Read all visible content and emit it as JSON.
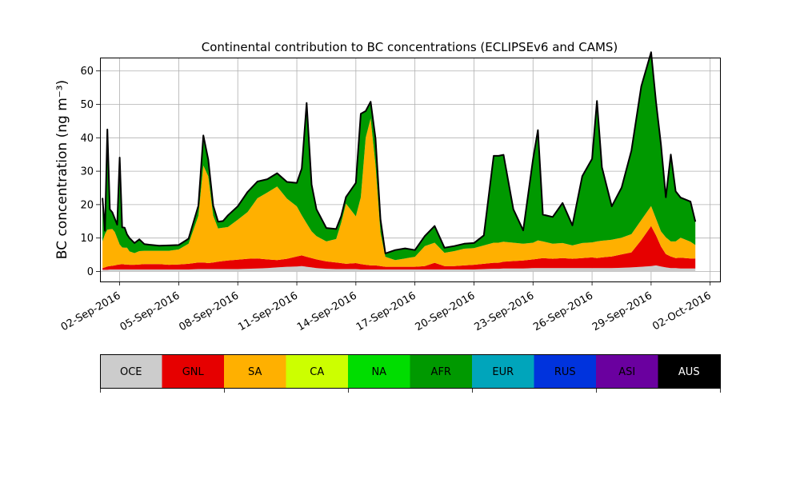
{
  "chart_data": {
    "type": "area",
    "stacked": true,
    "title": "Continental contribution to BC concentrations (ECLIPSEv6 and CAMS)",
    "ylabel": "BC concentration (ng m⁻³)",
    "xlabel": "",
    "ylim": [
      -3,
      64
    ],
    "xlim": [
      "2016-09-01T00:00",
      "2016-10-02T12:00"
    ],
    "x_tick_dates": [
      "2016-09-02",
      "2016-09-05",
      "2016-09-08",
      "2016-09-11",
      "2016-09-14",
      "2016-09-17",
      "2016-09-20",
      "2016-09-23",
      "2016-09-26",
      "2016-09-29",
      "2016-10-02"
    ],
    "x_tick_labels": [
      "02-Sep-2016",
      "05-Sep-2016",
      "08-Sep-2016",
      "11-Sep-2016",
      "14-Sep-2016",
      "17-Sep-2016",
      "20-Sep-2016",
      "23-Sep-2016",
      "26-Sep-2016",
      "29-Sep-2016",
      "02-Oct-2016"
    ],
    "y_ticks": [
      0,
      10,
      20,
      30,
      40,
      50,
      60
    ],
    "grid": true,
    "outline_color": "#000000",
    "x": [
      "2016-09-01T03:00",
      "2016-09-01T06:00",
      "2016-09-01T09:00",
      "2016-09-01T12:00",
      "2016-09-01T15:00",
      "2016-09-01T18:00",
      "2016-09-01T21:00",
      "2016-09-02T00:00",
      "2016-09-02T03:00",
      "2016-09-02T06:00",
      "2016-09-02T09:00",
      "2016-09-02T12:00",
      "2016-09-02T18:00",
      "2016-09-03T00:00",
      "2016-09-03T06:00",
      "2016-09-03T12:00",
      "2016-09-04T00:00",
      "2016-09-04T12:00",
      "2016-09-05T00:00",
      "2016-09-05T12:00",
      "2016-09-06T00:00",
      "2016-09-06T06:00",
      "2016-09-06T12:00",
      "2016-09-06T18:00",
      "2016-09-07T00:00",
      "2016-09-07T06:00",
      "2016-09-07T12:00",
      "2016-09-08T00:00",
      "2016-09-08T12:00",
      "2016-09-09T00:00",
      "2016-09-09T12:00",
      "2016-09-10T00:00",
      "2016-09-10T12:00",
      "2016-09-11T00:00",
      "2016-09-11T06:00",
      "2016-09-11T12:00",
      "2016-09-11T18:00",
      "2016-09-12T00:00",
      "2016-09-12T12:00",
      "2016-09-13T00:00",
      "2016-09-13T06:00",
      "2016-09-13T12:00",
      "2016-09-14T00:00",
      "2016-09-14T06:00",
      "2016-09-14T12:00",
      "2016-09-14T18:00",
      "2016-09-15T00:00",
      "2016-09-15T06:00",
      "2016-09-15T12:00",
      "2016-09-16T00:00",
      "2016-09-16T12:00",
      "2016-09-17T00:00",
      "2016-09-17T12:00",
      "2016-09-18T00:00",
      "2016-09-18T12:00",
      "2016-09-19T00:00",
      "2016-09-19T12:00",
      "2016-09-20T00:00",
      "2016-09-20T12:00",
      "2016-09-21T00:00",
      "2016-09-21T06:00",
      "2016-09-21T12:00",
      "2016-09-22T00:00",
      "2016-09-22T12:00",
      "2016-09-23T00:00",
      "2016-09-23T06:00",
      "2016-09-23T12:00",
      "2016-09-24T00:00",
      "2016-09-24T12:00",
      "2016-09-25T00:00",
      "2016-09-25T12:00",
      "2016-09-26T00:00",
      "2016-09-26T06:00",
      "2016-09-26T12:00",
      "2016-09-27T00:00",
      "2016-09-27T12:00",
      "2016-09-28T00:00",
      "2016-09-28T12:00",
      "2016-09-29T00:00",
      "2016-09-29T06:00",
      "2016-09-29T12:00",
      "2016-09-29T18:00",
      "2016-09-30T00:00",
      "2016-09-30T06:00",
      "2016-09-30T12:00",
      "2016-10-01T00:00",
      "2016-10-01T06:00"
    ],
    "series": [
      {
        "name": "OCE",
        "color": "#cccccc",
        "values": [
          0.5,
          0.5,
          0.5,
          0.6,
          0.6,
          0.6,
          0.6,
          0.6,
          0.6,
          0.6,
          0.6,
          0.6,
          0.6,
          0.6,
          0.6,
          0.6,
          0.6,
          0.6,
          0.6,
          0.6,
          0.7,
          0.7,
          0.7,
          0.7,
          0.7,
          0.7,
          0.7,
          0.7,
          0.8,
          0.9,
          1.0,
          1.2,
          1.4,
          1.5,
          1.6,
          1.4,
          1.2,
          1.0,
          0.8,
          0.7,
          0.7,
          0.7,
          0.7,
          0.6,
          0.6,
          0.6,
          0.6,
          0.6,
          0.6,
          0.6,
          0.6,
          0.6,
          0.6,
          0.6,
          0.6,
          0.6,
          0.6,
          0.6,
          0.7,
          0.8,
          0.8,
          0.9,
          0.9,
          0.9,
          1.0,
          1.0,
          1.0,
          1.0,
          1.0,
          1.0,
          1.0,
          1.0,
          1.0,
          1.0,
          1.0,
          1.1,
          1.2,
          1.4,
          1.6,
          1.8,
          1.5,
          1.2,
          1.0,
          1.0,
          0.9,
          0.9,
          0.9
        ]
      },
      {
        "name": "GNL",
        "color": "#e60000",
        "values": [
          0.5,
          0.7,
          1.0,
          1.0,
          1.1,
          1.2,
          1.4,
          1.5,
          1.6,
          1.5,
          1.5,
          1.4,
          1.4,
          1.5,
          1.6,
          1.6,
          1.6,
          1.4,
          1.5,
          1.7,
          2.0,
          2.0,
          1.8,
          2.0,
          2.2,
          2.4,
          2.6,
          2.8,
          3.0,
          3.0,
          2.6,
          2.2,
          2.4,
          3.0,
          3.2,
          3.0,
          2.8,
          2.6,
          2.2,
          2.0,
          1.8,
          1.6,
          1.8,
          1.6,
          1.4,
          1.2,
          1.2,
          1.0,
          0.8,
          0.8,
          0.8,
          0.8,
          1.0,
          2.0,
          1.0,
          1.0,
          1.2,
          1.4,
          1.6,
          1.8,
          1.8,
          2.0,
          2.2,
          2.4,
          2.6,
          2.8,
          3.0,
          2.8,
          3.0,
          2.8,
          3.0,
          3.2,
          3.0,
          3.2,
          3.5,
          4.0,
          4.5,
          8.0,
          12.0,
          9.0,
          6.0,
          4.0,
          3.5,
          3.0,
          3.2,
          3.0,
          3.0
        ]
      },
      {
        "name": "SA",
        "color": "#ffb000",
        "values": [
          8.0,
          10.0,
          11.0,
          11.0,
          11.0,
          10.0,
          8.0,
          6.0,
          5.0,
          5.0,
          5.0,
          4.0,
          3.5,
          4.0,
          4.0,
          4.0,
          4.0,
          4.2,
          4.5,
          6.0,
          14.0,
          29.0,
          26.0,
          14.0,
          10.0,
          10.0,
          10.0,
          12.0,
          14.0,
          18.0,
          20.0,
          22.0,
          18.0,
          15.0,
          12.0,
          10.0,
          8.0,
          7.0,
          6.0,
          7.0,
          12.0,
          18.0,
          14.0,
          20.0,
          38.0,
          44.0,
          30.0,
          10.0,
          3.0,
          2.0,
          2.5,
          3.0,
          6.0,
          6.0,
          4.0,
          4.5,
          5.0,
          5.0,
          5.5,
          6.0,
          6.0,
          6.0,
          5.5,
          5.0,
          5.0,
          5.5,
          5.0,
          4.5,
          4.5,
          4.0,
          4.5,
          4.5,
          5.0,
          5.0,
          5.0,
          5.0,
          5.5,
          6.0,
          6.0,
          5.0,
          4.5,
          5.0,
          4.5,
          5.0,
          6.0,
          5.0,
          4.0
        ]
      },
      {
        "name": "CA",
        "color": "#ccff00",
        "values": [
          0,
          0,
          0,
          0,
          0,
          0,
          0,
          0,
          0,
          0,
          0,
          0,
          0,
          0,
          0,
          0,
          0,
          0,
          0,
          0,
          0,
          0,
          0,
          0,
          0,
          0,
          0,
          0,
          0,
          0,
          0,
          0,
          0,
          0,
          0,
          0,
          0,
          0,
          0,
          0,
          0,
          0,
          0,
          0,
          0,
          0,
          0,
          0,
          0,
          0,
          0,
          0,
          0,
          0,
          0,
          0,
          0,
          0,
          0,
          0,
          0,
          0,
          0,
          0,
          0,
          0,
          0,
          0,
          0,
          0,
          0,
          0,
          0,
          0,
          0,
          0,
          0,
          0,
          0,
          0,
          0,
          0,
          0,
          0,
          0,
          0,
          0
        ]
      },
      {
        "name": "NA",
        "color": "#00dd00",
        "values": [
          0,
          0,
          0,
          0,
          0,
          0,
          0,
          0,
          0,
          0,
          0,
          0,
          0,
          0,
          0,
          0,
          0,
          0,
          0,
          0,
          0,
          0,
          0,
          0,
          0,
          0,
          0,
          0,
          0,
          0,
          0,
          0,
          0,
          0,
          0,
          0,
          0,
          0,
          0,
          0,
          0,
          0,
          0,
          0,
          0,
          0,
          0,
          0,
          0,
          0,
          0,
          0,
          0,
          0,
          0,
          0,
          0,
          0,
          0,
          0,
          0,
          0,
          0,
          0,
          0,
          0,
          0,
          0,
          0,
          0,
          0,
          0,
          0,
          0,
          0,
          0,
          0,
          0,
          0,
          0,
          0,
          0,
          0,
          0,
          0,
          0,
          0
        ]
      },
      {
        "name": "AFR",
        "color": "#009900",
        "values": [
          13.0,
          1.0,
          30.0,
          6.0,
          5.0,
          4.0,
          4.0,
          26.0,
          6.0,
          6.0,
          4.0,
          4.0,
          3.0,
          3.5,
          2.0,
          1.8,
          1.5,
          1.6,
          1.3,
          1.5,
          3.0,
          9.0,
          5.0,
          3.0,
          2.0,
          2.0,
          3.5,
          4.0,
          6.0,
          5.0,
          4.0,
          4.0,
          5.0,
          7.0,
          14.0,
          36.0,
          14.0,
          8.0,
          4.0,
          3.0,
          2.0,
          2.0,
          10.0,
          25.0,
          8.0,
          5.0,
          8.0,
          4.0,
          1.0,
          3.0,
          3.0,
          2.0,
          3.0,
          5.0,
          1.5,
          1.5,
          1.5,
          1.5,
          3.0,
          26.0,
          26.0,
          26.0,
          10.0,
          4.0,
          25.0,
          33.0,
          8.0,
          8.0,
          12.0,
          6.0,
          20.0,
          25.0,
          42.0,
          22.0,
          10.0,
          15.0,
          25.0,
          40.0,
          46.0,
          35.0,
          26.0,
          12.0,
          26.0,
          15.0,
          12.0,
          12.0,
          7.0
        ]
      },
      {
        "name": "EUR",
        "color": "#00a5bb",
        "values": [
          0,
          0,
          0,
          0,
          0,
          0,
          0,
          0,
          0,
          0,
          0,
          0,
          0,
          0,
          0,
          0,
          0,
          0,
          0,
          0,
          0,
          0,
          0,
          0,
          0,
          0,
          0,
          0,
          0,
          0,
          0,
          0,
          0,
          0,
          0,
          0,
          0,
          0,
          0,
          0,
          0,
          0,
          0,
          0,
          0,
          0,
          0,
          0,
          0,
          0,
          0,
          0,
          0,
          0,
          0,
          0,
          0,
          0,
          0,
          0,
          0,
          0,
          0,
          0,
          0,
          0,
          0,
          0,
          0,
          0,
          0,
          0,
          0,
          0,
          0,
          0,
          0,
          0,
          0,
          0,
          0,
          0,
          0,
          0,
          0,
          0,
          0
        ]
      },
      {
        "name": "RUS",
        "color": "#0033dd",
        "values": [
          0,
          0,
          0,
          0,
          0,
          0,
          0,
          0,
          0,
          0,
          0,
          0,
          0,
          0,
          0,
          0,
          0,
          0,
          0,
          0,
          0,
          0,
          0,
          0,
          0,
          0,
          0,
          0,
          0,
          0,
          0,
          0,
          0,
          0,
          0,
          0,
          0,
          0,
          0,
          0,
          0,
          0,
          0,
          0,
          0,
          0,
          0,
          0,
          0,
          0,
          0,
          0,
          0,
          0,
          0,
          0,
          0,
          0,
          0,
          0,
          0,
          0,
          0,
          0,
          0,
          0,
          0,
          0,
          0,
          0,
          0,
          0,
          0,
          0,
          0,
          0,
          0,
          0,
          0,
          0,
          0,
          0,
          0,
          0,
          0,
          0,
          0
        ]
      },
      {
        "name": "ASI",
        "color": "#6a009f",
        "values": [
          0,
          0,
          0,
          0,
          0,
          0,
          0,
          0,
          0,
          0,
          0,
          0,
          0,
          0,
          0,
          0,
          0,
          0,
          0,
          0,
          0,
          0,
          0,
          0,
          0,
          0,
          0,
          0,
          0,
          0,
          0,
          0,
          0,
          0,
          0,
          0,
          0,
          0,
          0,
          0,
          0,
          0,
          0,
          0,
          0,
          0,
          0,
          0,
          0,
          0,
          0,
          0,
          0,
          0,
          0,
          0,
          0,
          0,
          0,
          0,
          0,
          0,
          0,
          0,
          0,
          0,
          0,
          0,
          0,
          0,
          0,
          0,
          0,
          0,
          0,
          0,
          0,
          0,
          0,
          0,
          0,
          0,
          0,
          0,
          0,
          0,
          0
        ]
      },
      {
        "name": "AUS",
        "color": "#000000",
        "values": [
          0,
          0,
          0,
          0,
          0,
          0,
          0,
          0,
          0,
          0,
          0,
          0,
          0,
          0,
          0,
          0,
          0,
          0,
          0,
          0,
          0,
          0,
          0,
          0,
          0,
          0,
          0,
          0,
          0,
          0,
          0,
          0,
          0,
          0,
          0,
          0,
          0,
          0,
          0,
          0,
          0,
          0,
          0,
          0,
          0,
          0,
          0,
          0,
          0,
          0,
          0,
          0,
          0,
          0,
          0,
          0,
          0,
          0,
          0,
          0,
          0,
          0,
          0,
          0,
          0,
          0,
          0,
          0,
          0,
          0,
          0,
          0,
          0,
          0,
          0,
          0,
          0,
          0,
          0,
          0,
          0,
          0,
          0,
          0,
          0,
          0,
          0
        ]
      }
    ],
    "legend": {
      "placement": "bottom",
      "style": "colorbar",
      "entries": [
        "OCE",
        "GNL",
        "SA",
        "CA",
        "NA",
        "AFR",
        "EUR",
        "RUS",
        "ASI",
        "AUS"
      ]
    }
  }
}
